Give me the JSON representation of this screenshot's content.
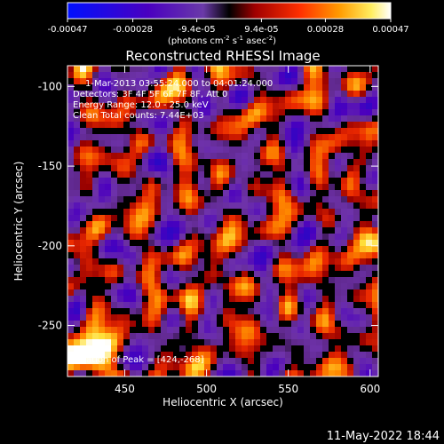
{
  "colorbar": {
    "tick_labels": [
      "-0.00047",
      "-0.00028",
      "-9.4e-05",
      "9.4e-05",
      "0.00028",
      "0.00047"
    ],
    "tick_values": [
      -0.00047,
      -0.00028,
      -9.4e-05,
      9.4e-05,
      0.00028,
      0.00047
    ],
    "range": [
      -0.00047,
      0.00047
    ],
    "unit_main": "(photons cm",
    "unit_exp1": "-2",
    "unit_mid": " s",
    "unit_exp2": "-1",
    "unit_mid2": " asec",
    "unit_exp3": "-2",
    "unit_close": ")"
  },
  "chart_data": {
    "type": "heatmap",
    "title": "Reconstructed RHESSI Image",
    "xlabel": "Heliocentric X (arcsec)",
    "ylabel": "Heliocentric Y (arcsec)",
    "xlim": [
      415,
      605
    ],
    "ylim": [
      -282,
      -87
    ],
    "xticks": [
      450,
      500,
      550,
      600
    ],
    "yticks": [
      -100,
      -150,
      -200,
      -250
    ],
    "xtick_labels": [
      "450",
      "500",
      "550",
      "600"
    ],
    "ytick_labels": [
      "-100",
      "-150",
      "-200",
      "-250"
    ],
    "peak": [
      424,
      -268
    ],
    "contours": "black",
    "colormap": [
      "#0000ff",
      "#4b00c8",
      "#7a22b8",
      "#000000",
      "#b00000",
      "#ff3300",
      "#ff9a00",
      "#ffe000",
      "#ffffff"
    ]
  },
  "annotations": {
    "time_range": "1-Mar-2013 03:55:24.000 to 04:01:24.000",
    "detectors": "Detectors: 3F 4F 5F 6F 7F 8F, Att 0",
    "energy": "Energy Range: 12.0 - 25.0 keV",
    "clean": "Clean    Total counts: 7.44E+03",
    "peak_label": "Location of Peak = [424,-268]"
  },
  "timestamp": "11-May-2022 18:44"
}
